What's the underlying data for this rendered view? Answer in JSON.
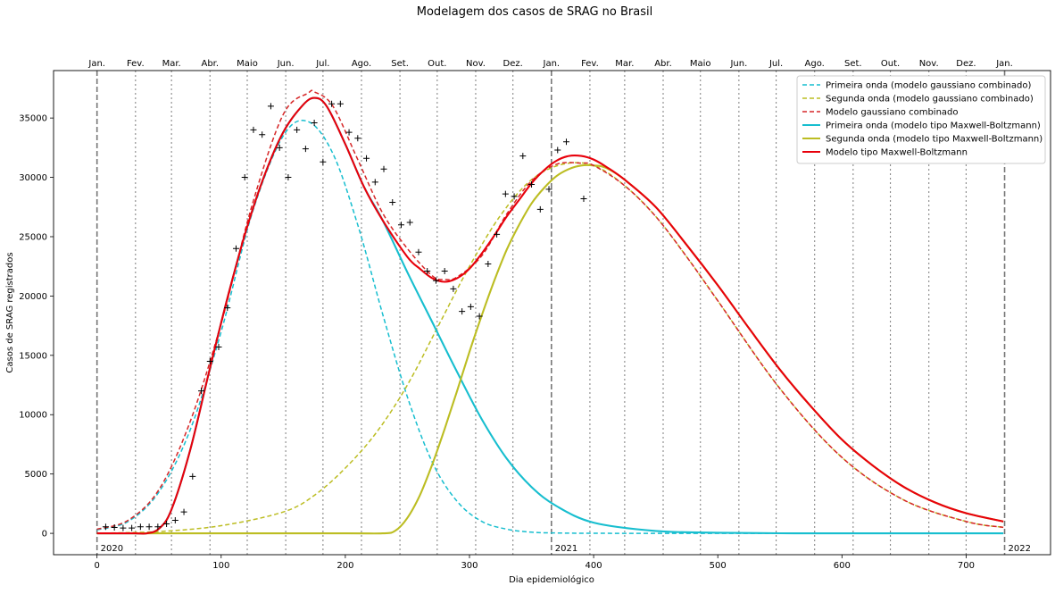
{
  "chart_data": {
    "type": "line",
    "title": "Modelagem dos casos de SRAG no Brasil",
    "xlabel": "Dia epidemiológico",
    "ylabel": "Casos de SRAG registrados",
    "xlim": [
      -35,
      768
    ],
    "ylim": [
      -1800,
      39000
    ],
    "grid": false,
    "legend_position": "top-right",
    "x_ticks": [
      0,
      100,
      200,
      300,
      400,
      500,
      600,
      700
    ],
    "y_ticks": [
      0,
      5000,
      10000,
      15000,
      20000,
      25000,
      30000,
      35000
    ],
    "month_lines": [
      {
        "x": 0,
        "label": "Jan."
      },
      {
        "x": 31,
        "label": "Fev."
      },
      {
        "x": 60,
        "label": "Mar."
      },
      {
        "x": 91,
        "label": "Abr."
      },
      {
        "x": 121,
        "label": "Maio"
      },
      {
        "x": 152,
        "label": "Jun."
      },
      {
        "x": 182,
        "label": "Jul."
      },
      {
        "x": 213,
        "label": "Ago."
      },
      {
        "x": 244,
        "label": "Set."
      },
      {
        "x": 274,
        "label": "Out."
      },
      {
        "x": 305,
        "label": "Nov."
      },
      {
        "x": 335,
        "label": "Dez."
      },
      {
        "x": 366,
        "label": "Jan."
      },
      {
        "x": 397,
        "label": "Fev."
      },
      {
        "x": 425,
        "label": "Mar."
      },
      {
        "x": 456,
        "label": "Abr."
      },
      {
        "x": 486,
        "label": "Maio"
      },
      {
        "x": 517,
        "label": "Jun."
      },
      {
        "x": 547,
        "label": "Jul."
      },
      {
        "x": 578,
        "label": "Ago."
      },
      {
        "x": 609,
        "label": "Set."
      },
      {
        "x": 639,
        "label": "Out."
      },
      {
        "x": 670,
        "label": "Nov."
      },
      {
        "x": 700,
        "label": "Dez."
      },
      {
        "x": 731,
        "label": "Jan."
      }
    ],
    "year_lines": [
      {
        "x": 0,
        "label": "2020"
      },
      {
        "x": 366,
        "label": "2021"
      },
      {
        "x": 731,
        "label": "2022"
      }
    ],
    "series": [
      {
        "name": "Primeira onda (modelo gaussiano combinado)",
        "color": "#17becf",
        "style": "dashed",
        "x": [
          0,
          25,
          50,
          75,
          100,
          125,
          150,
          170,
          190,
          210,
          230,
          250,
          270,
          290,
          310,
          330,
          350,
          370,
          400,
          450,
          500,
          600,
          730
        ],
        "y": [
          300,
          1000,
          3500,
          8700,
          17000,
          27000,
          33500,
          34700,
          32000,
          26000,
          18500,
          11500,
          6000,
          2700,
          1000,
          350,
          100,
          30,
          5,
          0,
          0,
          0,
          0
        ]
      },
      {
        "name": "Segunda onda (modelo gaussiano combinado)",
        "color": "#bcbd22",
        "style": "dashed",
        "x": [
          0,
          50,
          100,
          150,
          175,
          200,
          225,
          250,
          275,
          300,
          325,
          350,
          375,
          400,
          425,
          450,
          475,
          500,
          550,
          600,
          650,
          700,
          730
        ],
        "y": [
          10,
          150,
          650,
          1800,
          3200,
          5500,
          8500,
          12500,
          17500,
          22500,
          26800,
          29800,
          31100,
          31000,
          29300,
          26700,
          23300,
          19600,
          12200,
          6400,
          2800,
          1000,
          500
        ]
      },
      {
        "name": "Modelo gaussiano combinado",
        "color": "#d62728",
        "style": "dashed",
        "x": [
          0,
          25,
          50,
          75,
          100,
          125,
          150,
          170,
          175,
          190,
          210,
          230,
          250,
          270,
          280,
          290,
          310,
          330,
          350,
          370,
          390,
          400,
          425,
          450,
          475,
          500,
          550,
          600,
          650,
          700,
          730
        ],
        "y": [
          350,
          1100,
          3700,
          9400,
          17700,
          27700,
          35300,
          37100,
          37200,
          36000,
          31500,
          27000,
          24000,
          21700,
          21400,
          21600,
          23400,
          26900,
          29700,
          31100,
          31200,
          31000,
          29300,
          26700,
          23300,
          19600,
          12200,
          6400,
          2800,
          1000,
          500
        ]
      },
      {
        "name": "Primeira onda (modelo tipo Maxwell-Boltzmann)",
        "color": "#17becf",
        "style": "solid",
        "x": [
          0,
          30,
          40,
          50,
          60,
          75,
          90,
          105,
          120,
          135,
          150,
          165,
          175,
          185,
          200,
          215,
          230,
          250,
          270,
          290,
          310,
          330,
          350,
          370,
          400,
          450,
          500,
          550,
          600,
          650,
          700,
          730
        ],
        "y": [
          0,
          0,
          0,
          400,
          2000,
          7000,
          13500,
          19800,
          25500,
          30200,
          33800,
          36000,
          36700,
          36000,
          32800,
          29200,
          26400,
          22000,
          17800,
          13600,
          9600,
          6300,
          3900,
          2300,
          900,
          200,
          50,
          10,
          0,
          0,
          0,
          0
        ]
      },
      {
        "name": "Segunda onda (modelo tipo Maxwell-Boltzmann)",
        "color": "#bcbd22",
        "style": "solid",
        "x": [
          0,
          100,
          200,
          230,
          240,
          250,
          260,
          270,
          280,
          290,
          300,
          310,
          320,
          330,
          340,
          350,
          360,
          370,
          380,
          390,
          400,
          410,
          425,
          450,
          475,
          500,
          525,
          550,
          575,
          600,
          625,
          650,
          675,
          700,
          730
        ],
        "y": [
          0,
          0,
          0,
          0,
          200,
          1300,
          3200,
          5800,
          8800,
          12000,
          15300,
          18400,
          21300,
          23900,
          26000,
          27800,
          29100,
          30100,
          30700,
          31000,
          31000,
          30800,
          29800,
          27500,
          24300,
          20900,
          17300,
          13800,
          10700,
          7900,
          5700,
          3900,
          2600,
          1700,
          1000
        ]
      },
      {
        "name": "Modelo tipo Maxwell-Boltzmann",
        "color": "#e8000b",
        "style": "solid",
        "x": [
          0,
          30,
          40,
          50,
          60,
          75,
          90,
          105,
          120,
          135,
          150,
          165,
          175,
          185,
          200,
          215,
          230,
          250,
          260,
          270,
          280,
          290,
          300,
          310,
          320,
          330,
          340,
          350,
          360,
          370,
          380,
          390,
          400,
          410,
          425,
          450,
          475,
          500,
          525,
          550,
          575,
          600,
          625,
          650,
          675,
          700,
          730
        ],
        "y": [
          0,
          0,
          0,
          400,
          2000,
          7000,
          13500,
          19800,
          25500,
          30200,
          33800,
          36000,
          36700,
          36000,
          32800,
          29200,
          26400,
          23300,
          22300,
          21500,
          21200,
          21500,
          22300,
          23600,
          25100,
          26700,
          28100,
          29500,
          30600,
          31400,
          31800,
          31800,
          31500,
          30900,
          29800,
          27500,
          24300,
          20900,
          17300,
          13800,
          10700,
          7900,
          5700,
          3900,
          2600,
          1700,
          1000
        ]
      }
    ],
    "observed": {
      "marker": "+",
      "x": [
        7,
        14,
        21,
        28,
        35,
        42,
        49,
        56,
        63,
        70,
        77,
        84,
        91,
        98,
        105,
        112,
        119,
        126,
        133,
        140,
        147,
        154,
        161,
        168,
        175,
        182,
        189,
        196,
        203,
        210,
        217,
        224,
        231,
        238,
        245,
        252,
        259,
        266,
        273,
        280,
        287,
        294,
        301,
        308,
        315,
        322,
        329,
        336,
        343,
        350,
        357,
        364,
        371,
        378,
        392
      ],
      "y": [
        550,
        500,
        450,
        450,
        550,
        550,
        550,
        800,
        1100,
        1800,
        4800,
        12000,
        14500,
        15700,
        19000,
        24000,
        30000,
        34000,
        33600,
        36000,
        32500,
        30000,
        34000,
        32400,
        34600,
        31300,
        36200,
        36200,
        33800,
        33300,
        31600,
        29600,
        30700,
        27900,
        26000,
        26200,
        23700,
        22100,
        21300,
        22100,
        20600,
        18700,
        19100,
        18300,
        22700,
        25200,
        28600,
        28400,
        31800,
        29400,
        27300,
        29000,
        32300,
        33000,
        28200
      ]
    }
  }
}
